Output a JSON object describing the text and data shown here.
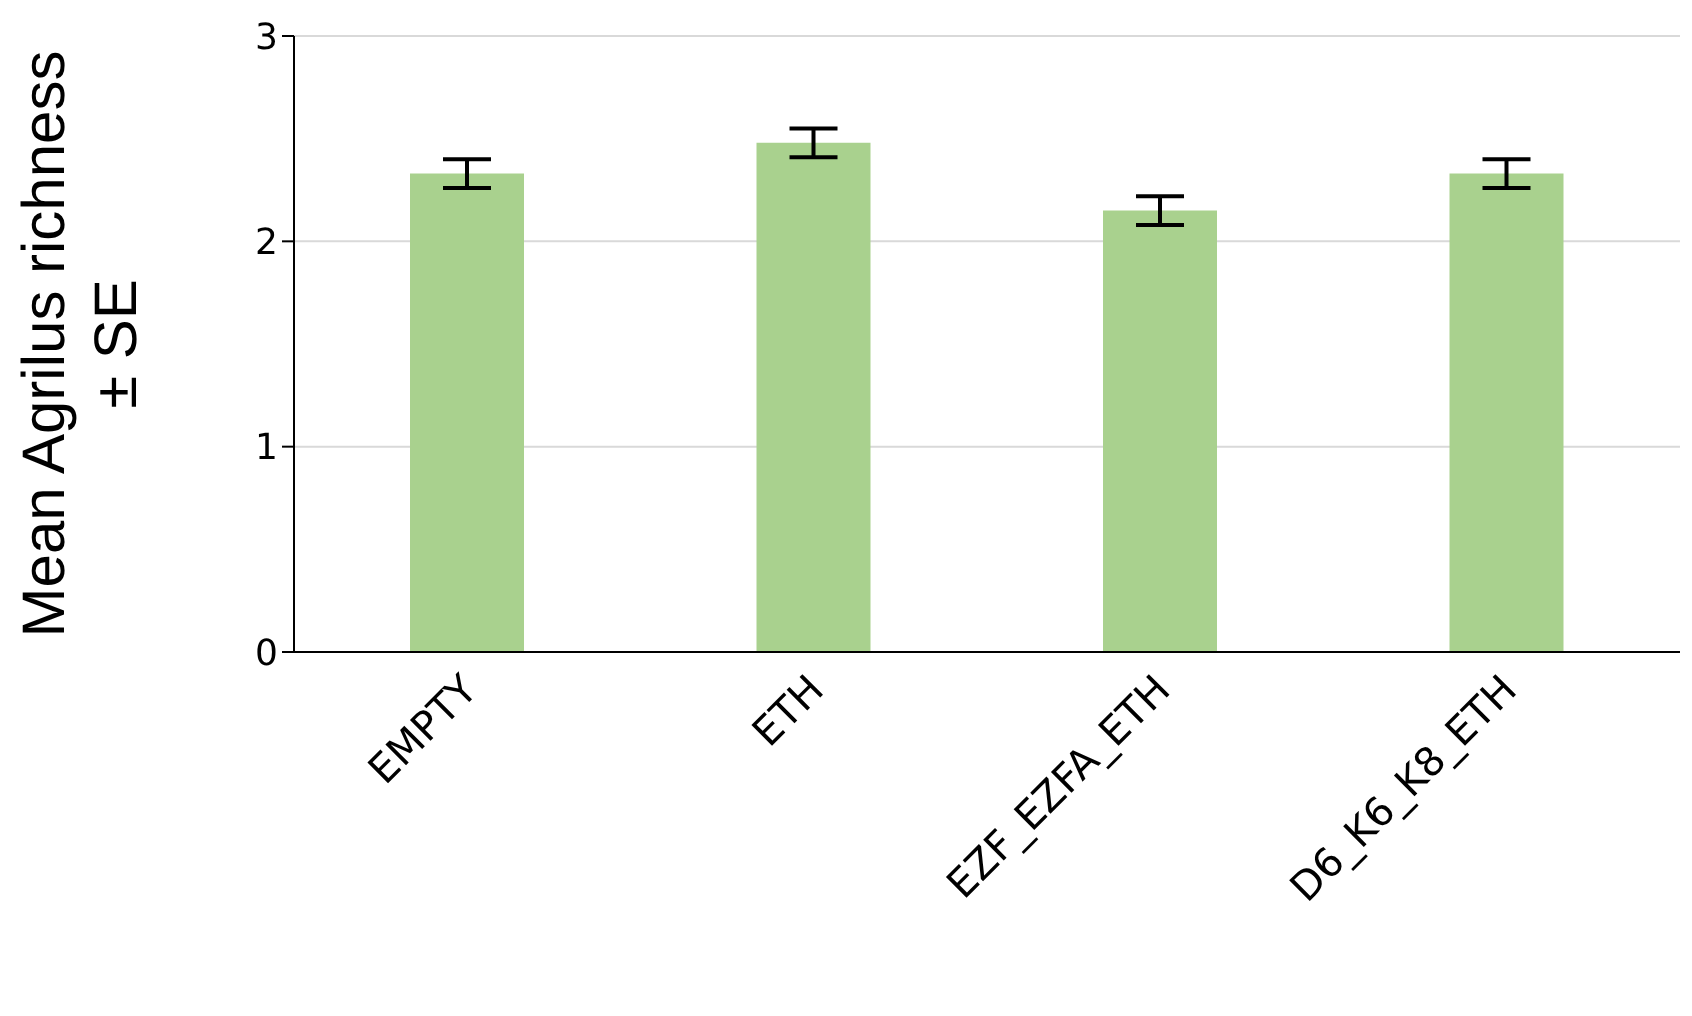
{
  "chart_data": {
    "type": "bar",
    "ylabel": "Mean Agrilus richness ± SE",
    "categories": [
      "EMPTY",
      "ETH",
      "EZF_EZFA_ETH",
      "D6_K6_K8_ETH"
    ],
    "values": [
      2.33,
      2.48,
      2.15,
      2.33
    ],
    "errors": [
      0.07,
      0.07,
      0.07,
      0.07
    ],
    "color": "#a9d18e",
    "ylim": [
      0,
      3
    ],
    "yticks": [
      0,
      1,
      2,
      3
    ],
    "grid": "y",
    "legend": false
  }
}
